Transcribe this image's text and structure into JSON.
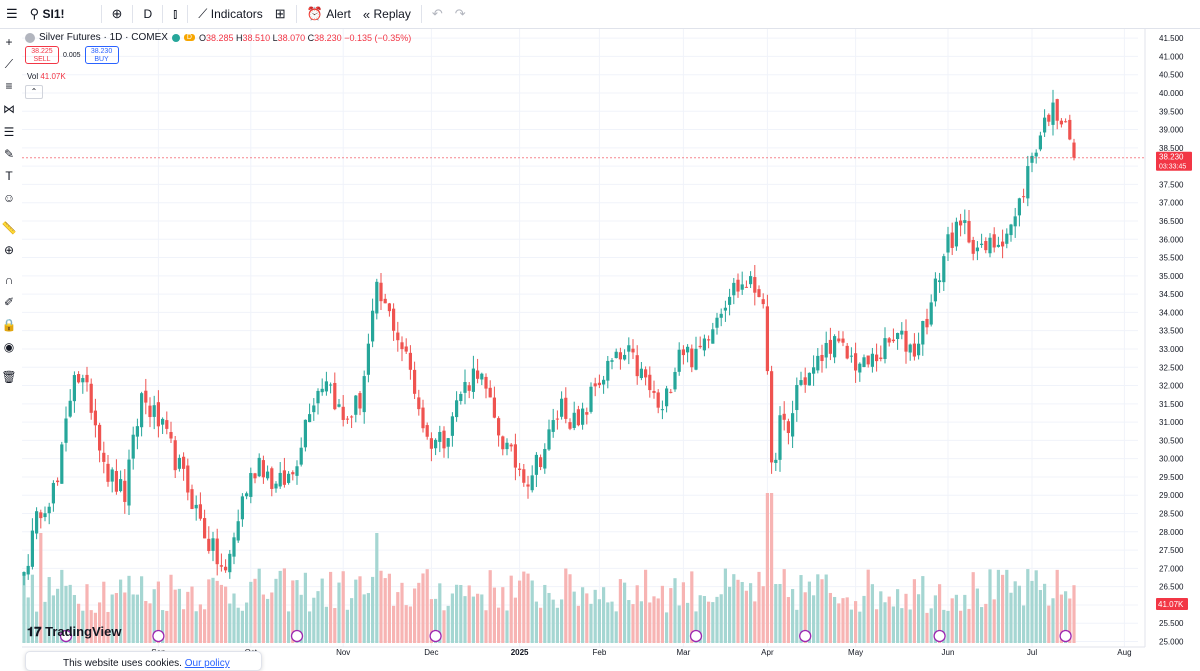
{
  "toolbar": {
    "symbol": "SI1!",
    "interval": "D",
    "indicators_label": "Indicators",
    "alert_label": "Alert",
    "replay_label": "Replay"
  },
  "legend": {
    "title": "Silver Futures · 1D · COMEX",
    "badge": "D",
    "o_label": "O",
    "o_value": "38.285",
    "h_label": "H",
    "h_value": "38.510",
    "l_label": "L",
    "l_value": "38.070",
    "c_label": "C",
    "c_value": "38.230",
    "change": "−0.135 (−0.35%)",
    "sell_price": "38.225",
    "sell_label": "SELL",
    "spread": "0.005",
    "buy_price": "38.230",
    "buy_label": "BUY",
    "vol_label": "Vol",
    "vol_value": "41.07K"
  },
  "branding": {
    "logo_text": "TradingView"
  },
  "cookie": {
    "text": "This website uses cookies.",
    "link": "Our policy"
  },
  "colors": {
    "up": "#26a69a",
    "down": "#ef5350",
    "up_vol": "#a5d6d2",
    "down_vol": "#f7b4b3",
    "price_label": "#f23645",
    "grid": "#f0f3fa"
  },
  "chart_data": {
    "type": "candlestick",
    "title": "Silver Futures · 1D · COMEX",
    "y_ticks": [
      "41.500",
      "41.000",
      "40.500",
      "40.000",
      "39.500",
      "39.000",
      "38.500",
      "38.000",
      "37.500",
      "37.000",
      "36.500",
      "36.000",
      "35.500",
      "35.000",
      "34.500",
      "34.000",
      "33.500",
      "33.000",
      "32.500",
      "32.000",
      "31.500",
      "31.000",
      "30.500",
      "30.000",
      "29.500",
      "29.000",
      "28.500",
      "28.000",
      "27.500",
      "27.000",
      "26.500",
      "26.000",
      "25.500",
      "25.000"
    ],
    "ylim": [
      24.85,
      41.75
    ],
    "x_labels": [
      "Sep",
      "Oct",
      "Nov",
      "Dec",
      "2025",
      "Feb",
      "Mar",
      "Apr",
      "May",
      "Jun",
      "Jul",
      "Aug"
    ],
    "x_label_index": [
      32,
      54,
      76,
      97,
      118,
      137,
      157,
      177,
      198,
      220,
      240,
      262
    ],
    "n_bars": 263,
    "close_anchors": [
      [
        0,
        26.9
      ],
      [
        4,
        28.7
      ],
      [
        8,
        29.3
      ],
      [
        12,
        32.5
      ],
      [
        16,
        31.5
      ],
      [
        20,
        29.6
      ],
      [
        24,
        29.0
      ],
      [
        28,
        31.7
      ],
      [
        32,
        31.0
      ],
      [
        36,
        30.0
      ],
      [
        40,
        28.9
      ],
      [
        44,
        27.7
      ],
      [
        48,
        26.8
      ],
      [
        52,
        28.9
      ],
      [
        56,
        30.0
      ],
      [
        60,
        29.2
      ],
      [
        64,
        29.6
      ],
      [
        68,
        31.5
      ],
      [
        72,
        32.3
      ],
      [
        76,
        31.0
      ],
      [
        80,
        31.6
      ],
      [
        84,
        34.5
      ],
      [
        88,
        33.7
      ],
      [
        92,
        32.4
      ],
      [
        96,
        30.5
      ],
      [
        100,
        30.6
      ],
      [
        104,
        31.8
      ],
      [
        108,
        32.5
      ],
      [
        112,
        31.0
      ],
      [
        116,
        30.0
      ],
      [
        120,
        29.5
      ],
      [
        124,
        30.3
      ],
      [
        128,
        31.5
      ],
      [
        132,
        30.8
      ],
      [
        136,
        32.0
      ],
      [
        140,
        32.6
      ],
      [
        144,
        32.8
      ],
      [
        148,
        32.1
      ],
      [
        152,
        31.2
      ],
      [
        156,
        33.1
      ],
      [
        160,
        32.7
      ],
      [
        164,
        33.8
      ],
      [
        168,
        34.6
      ],
      [
        172,
        34.8
      ],
      [
        176,
        34.5
      ],
      [
        178,
        29.6
      ],
      [
        180,
        31.0
      ],
      [
        182,
        30.6
      ],
      [
        184,
        32.0
      ],
      [
        188,
        32.4
      ],
      [
        192,
        33.2
      ],
      [
        196,
        32.8
      ],
      [
        200,
        32.5
      ],
      [
        204,
        32.9
      ],
      [
        208,
        33.3
      ],
      [
        212,
        33.0
      ],
      [
        216,
        34.2
      ],
      [
        220,
        36.0
      ],
      [
        224,
        36.3
      ],
      [
        228,
        35.6
      ],
      [
        232,
        36.0
      ],
      [
        236,
        36.5
      ],
      [
        240,
        38.3
      ],
      [
        244,
        39.5
      ],
      [
        248,
        39.4
      ],
      [
        250,
        38.23
      ]
    ],
    "last_bar_index": 250,
    "last_price": "38.230",
    "countdown": "03:33:45",
    "volume_last": "41.07K",
    "event_markers": [
      {
        "index": 10,
        "type": "dividend"
      },
      {
        "index": 32,
        "type": "dividend"
      },
      {
        "index": 65,
        "type": "dividend"
      },
      {
        "index": 98,
        "type": "dividend"
      },
      {
        "index": 160,
        "type": "dividend"
      },
      {
        "index": 186,
        "type": "dividend"
      },
      {
        "index": 218,
        "type": "dividend"
      },
      {
        "index": 248,
        "type": "earnings"
      }
    ]
  }
}
